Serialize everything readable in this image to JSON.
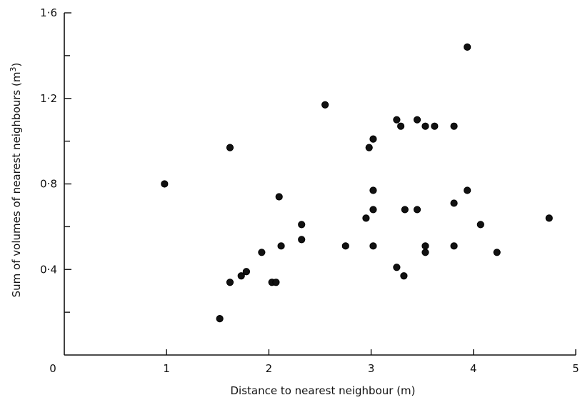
{
  "chart_data": {
    "type": "scatter",
    "title": "",
    "xlabel": "Distance to nearest neighbour (m)",
    "ylabel_main": "Sum of volumes of nearest neighbours (m",
    "ylabel_sup": "3",
    "ylabel_close": ")",
    "xlim": [
      0,
      5
    ],
    "ylim": [
      0,
      1.6
    ],
    "x_ticks": [
      {
        "value": 0,
        "label": "0"
      },
      {
        "value": 1,
        "label": "1"
      },
      {
        "value": 2,
        "label": "2"
      },
      {
        "value": 3,
        "label": "3"
      },
      {
        "value": 4,
        "label": "4"
      },
      {
        "value": 5,
        "label": "5"
      }
    ],
    "y_ticks_major": [
      {
        "value": 0.4,
        "label": "0·4"
      },
      {
        "value": 0.8,
        "label": "0·8"
      },
      {
        "value": 1.2,
        "label": "1·2"
      },
      {
        "value": 1.6,
        "label": "1·6"
      }
    ],
    "y_ticks_minor": [
      0.2,
      0.6,
      1.0,
      1.4
    ],
    "grid": false,
    "points": [
      {
        "x": 0.98,
        "y": 0.8
      },
      {
        "x": 1.52,
        "y": 0.17
      },
      {
        "x": 1.62,
        "y": 0.34
      },
      {
        "x": 1.62,
        "y": 0.97
      },
      {
        "x": 1.73,
        "y": 0.37
      },
      {
        "x": 1.78,
        "y": 0.39
      },
      {
        "x": 1.93,
        "y": 0.48
      },
      {
        "x": 2.03,
        "y": 0.34
      },
      {
        "x": 2.07,
        "y": 0.34
      },
      {
        "x": 2.1,
        "y": 0.74
      },
      {
        "x": 2.12,
        "y": 0.51
      },
      {
        "x": 2.32,
        "y": 0.61
      },
      {
        "x": 2.32,
        "y": 0.54
      },
      {
        "x": 2.55,
        "y": 1.17
      },
      {
        "x": 2.75,
        "y": 0.51
      },
      {
        "x": 2.95,
        "y": 0.64
      },
      {
        "x": 2.98,
        "y": 0.97
      },
      {
        "x": 3.02,
        "y": 1.01
      },
      {
        "x": 3.02,
        "y": 0.77
      },
      {
        "x": 3.02,
        "y": 0.68
      },
      {
        "x": 3.02,
        "y": 0.51
      },
      {
        "x": 3.25,
        "y": 1.1
      },
      {
        "x": 3.25,
        "y": 0.41
      },
      {
        "x": 3.29,
        "y": 1.07
      },
      {
        "x": 3.32,
        "y": 0.37
      },
      {
        "x": 3.33,
        "y": 0.68
      },
      {
        "x": 3.45,
        "y": 1.1
      },
      {
        "x": 3.45,
        "y": 0.68
      },
      {
        "x": 3.53,
        "y": 1.07
      },
      {
        "x": 3.53,
        "y": 0.51
      },
      {
        "x": 3.53,
        "y": 0.48
      },
      {
        "x": 3.62,
        "y": 1.07
      },
      {
        "x": 3.81,
        "y": 1.07
      },
      {
        "x": 3.81,
        "y": 0.71
      },
      {
        "x": 3.81,
        "y": 0.51
      },
      {
        "x": 3.94,
        "y": 1.44
      },
      {
        "x": 3.94,
        "y": 0.77
      },
      {
        "x": 4.07,
        "y": 0.61
      },
      {
        "x": 4.23,
        "y": 0.48
      },
      {
        "x": 4.74,
        "y": 0.64
      }
    ]
  }
}
